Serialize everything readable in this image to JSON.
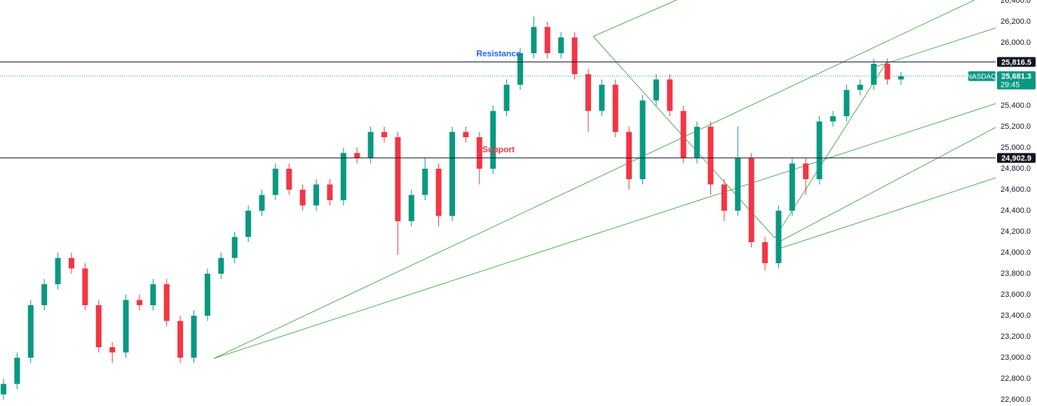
{
  "chart_data": {
    "type": "candlestick",
    "ylim": [
      22600,
      26400
    ],
    "yticks": [
      {
        "value": 22600,
        "label": "22,600.0"
      },
      {
        "value": 22800,
        "label": "22,800.0"
      },
      {
        "value": 23000,
        "label": "23,000.0"
      },
      {
        "value": 23200,
        "label": "23,200.0"
      },
      {
        "value": 23400,
        "label": "23,400.0"
      },
      {
        "value": 23600,
        "label": "23,600.0"
      },
      {
        "value": 23800,
        "label": "23,800.0"
      },
      {
        "value": 24000,
        "label": "24,000.0"
      },
      {
        "value": 24200,
        "label": "24,200.0"
      },
      {
        "value": 24400,
        "label": "24,400.0"
      },
      {
        "value": 24600,
        "label": "24,600.0"
      },
      {
        "value": 24800,
        "label": "24,800.0"
      },
      {
        "value": 25000,
        "label": "25,000.0"
      },
      {
        "value": 25200,
        "label": "25,200.0"
      },
      {
        "value": 25400,
        "label": "25,400.0"
      },
      {
        "value": 26000,
        "label": "26,000.0"
      },
      {
        "value": 26200,
        "label": "26,200.0"
      },
      {
        "value": 26400,
        "label": "26,400.0"
      }
    ],
    "up_color": "#089981",
    "down_color": "#f23645",
    "open": [
      22650,
      22750,
      23000,
      23500,
      23700,
      23950,
      23850,
      23500,
      23100,
      23050,
      23550,
      23500,
      23700,
      23350,
      23000,
      23400,
      23800,
      23950,
      24150,
      24400,
      24550,
      24800,
      24600,
      24450,
      24650,
      24500,
      24950,
      24900,
      25150,
      25100,
      24300,
      24550,
      24800,
      24350,
      25150,
      25100,
      24800,
      25350,
      25600,
      25900,
      26150,
      25900,
      26050,
      25700,
      25350,
      25600,
      25150,
      24700,
      25450,
      25650,
      25350,
      24900,
      25200,
      24650,
      24400,
      24900,
      24100,
      23900,
      24400,
      24850,
      24700,
      25250,
      25300,
      25550,
      25600,
      25800,
      25650
    ],
    "high": [
      22800,
      23050,
      23550,
      23750,
      24000,
      24000,
      23900,
      23550,
      23150,
      23600,
      23600,
      23750,
      23750,
      23400,
      23450,
      23850,
      24000,
      24200,
      24450,
      24600,
      24850,
      24850,
      24650,
      24700,
      24700,
      25000,
      25000,
      25200,
      25200,
      25150,
      24600,
      24900,
      24850,
      25200,
      25200,
      25150,
      25400,
      25650,
      25950,
      26250,
      26200,
      26100,
      26100,
      25750,
      25650,
      25650,
      25200,
      25500,
      25700,
      25700,
      25400,
      25250,
      25250,
      24700,
      25200,
      24950,
      24150,
      24450,
      24900,
      24900,
      25300,
      25350,
      25600,
      25650,
      25850,
      25850,
      25720
    ],
    "low": [
      22600,
      22700,
      22950,
      23450,
      23650,
      23800,
      23450,
      23050,
      22950,
      23000,
      23450,
      23450,
      23300,
      22950,
      22950,
      23350,
      23750,
      23900,
      24100,
      24350,
      24500,
      24550,
      24400,
      24400,
      24450,
      24450,
      24850,
      24850,
      25050,
      23980,
      24250,
      24500,
      24250,
      24300,
      25050,
      24650,
      24750,
      25300,
      25550,
      25850,
      25850,
      25850,
      25650,
      25150,
      25300,
      25100,
      24600,
      24650,
      25400,
      25300,
      24850,
      24850,
      24550,
      24300,
      24350,
      24050,
      23830,
      23850,
      24350,
      24550,
      24650,
      25200,
      25250,
      25500,
      25550,
      25600,
      25600
    ],
    "close": [
      22750,
      23000,
      23500,
      23700,
      23950,
      23850,
      23500,
      23100,
      23050,
      23550,
      23500,
      23700,
      23350,
      23000,
      23400,
      23800,
      23950,
      24150,
      24400,
      24550,
      24800,
      24600,
      24450,
      24650,
      24500,
      24950,
      24900,
      25150,
      25100,
      24300,
      24550,
      24800,
      24350,
      25150,
      25100,
      24800,
      25350,
      25600,
      25900,
      26150,
      25900,
      26050,
      25700,
      25350,
      25600,
      25150,
      24700,
      25450,
      25650,
      25350,
      24900,
      25200,
      24650,
      24400,
      24900,
      24100,
      23900,
      24400,
      24850,
      24700,
      25250,
      25300,
      25550,
      25600,
      25800,
      25650,
      25681.3
    ],
    "levels": [
      {
        "name": "Resistance",
        "value": 25816.5,
        "label": "25,816.5",
        "color": "#2962ff"
      },
      {
        "name": "Support",
        "value": 24902.9,
        "label": "24,902.9",
        "color": "#f23645"
      }
    ],
    "last_price": {
      "symbol": "NASDAQ",
      "value": 25681.3,
      "label": "25,681.3",
      "countdown": "29:45",
      "color": "#089981"
    }
  }
}
